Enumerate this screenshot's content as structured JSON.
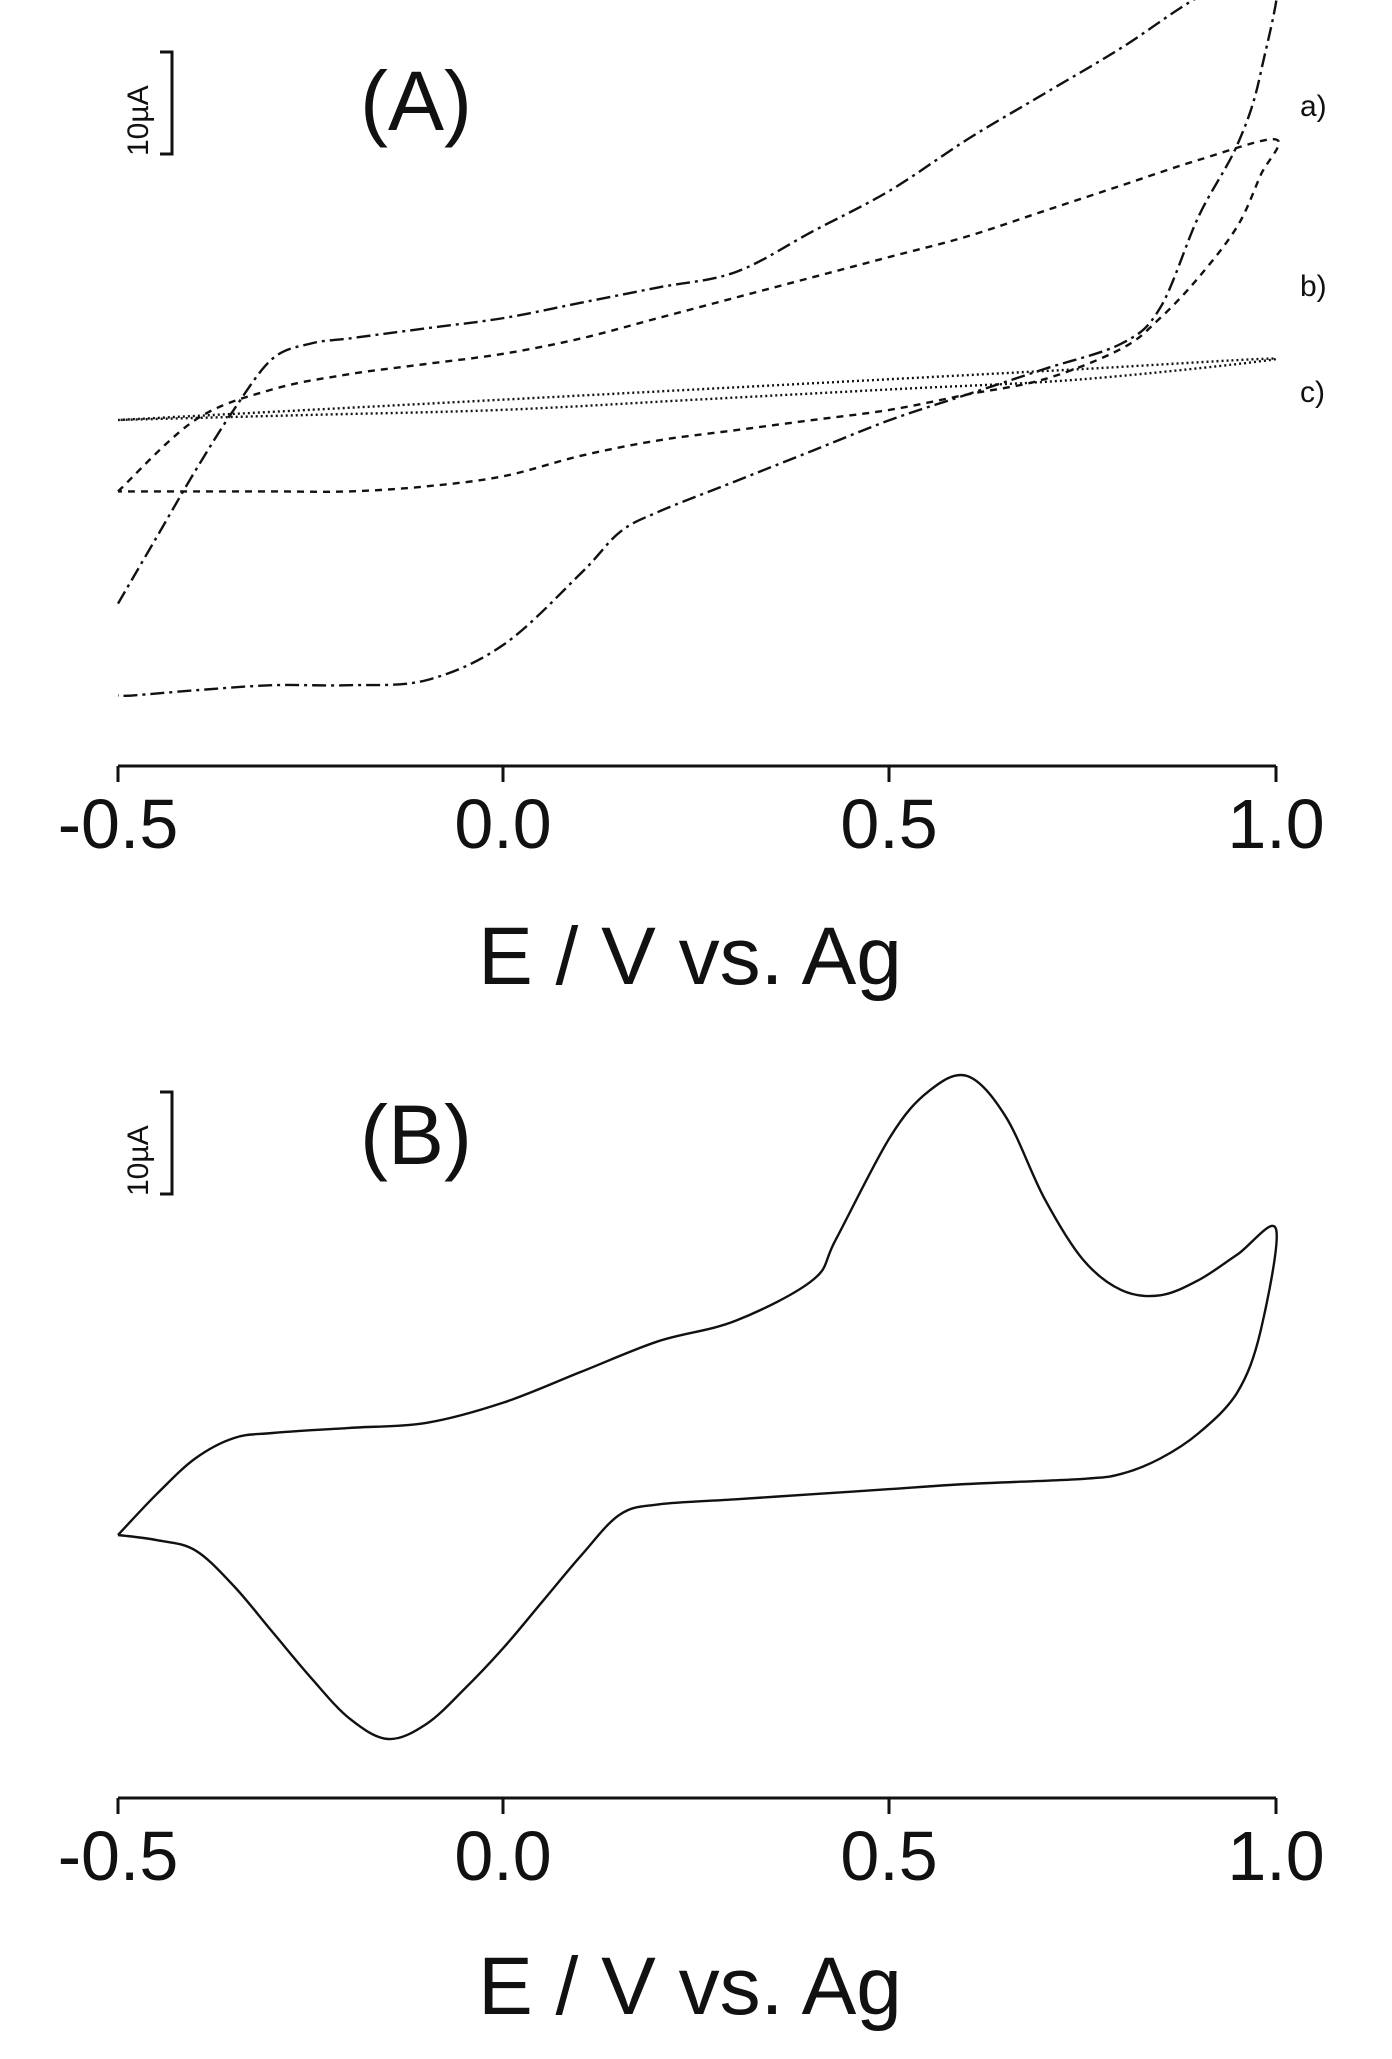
{
  "chart_data": [
    {
      "type": "line",
      "panel_label": "(A)",
      "xlabel": "E / V vs. Ag",
      "ylabel": "",
      "xlim": [
        -0.5,
        1.0
      ],
      "xticks": [
        "-0.5",
        "0.0",
        "0.5",
        "1.0"
      ],
      "y_axis": "none (current shown with 10 µA scale bar)",
      "scale_bar": {
        "label": "10µA",
        "value_uA": 10
      },
      "ylim_uA": [
        -50,
        45
      ],
      "grid": false,
      "legend": "labels at right end of each curve",
      "series": [
        {
          "name": "a)",
          "line_style": "dash-dot",
          "unit": "µA (relative)",
          "x": [
            -0.5,
            -0.45,
            -0.4,
            -0.35,
            -0.3,
            -0.25,
            -0.2,
            -0.1,
            0.0,
            0.1,
            0.2,
            0.3,
            0.4,
            0.5,
            0.6,
            0.7,
            0.8,
            0.9,
            1.0,
            0.98,
            0.95,
            0.9,
            0.85,
            0.8,
            0.7,
            0.6,
            0.5,
            0.4,
            0.3,
            0.2,
            0.15,
            0.1,
            0.0,
            -0.1,
            -0.2,
            -0.3,
            -0.4,
            -0.48,
            -0.5
          ],
          "y": [
            -18,
            -11.5,
            -5,
            1,
            6,
            7.5,
            8,
            9,
            10,
            11.5,
            13,
            14.5,
            18.5,
            22.5,
            27.5,
            32,
            36.5,
            41.5,
            45,
            34,
            27,
            20,
            11,
            7.5,
            5,
            2.5,
            0,
            -3,
            -6,
            -9,
            -11,
            -15,
            -22,
            -25.5,
            -26,
            -26,
            -26.5,
            -27,
            -27
          ]
        },
        {
          "name": "b)",
          "line_style": "dashed",
          "unit": "µA (relative)",
          "x": [
            -0.5,
            -0.4,
            -0.3,
            -0.2,
            -0.1,
            0.0,
            0.1,
            0.2,
            0.3,
            0.4,
            0.5,
            0.6,
            0.7,
            0.8,
            0.9,
            1.0,
            0.98,
            0.95,
            0.9,
            0.85,
            0.8,
            0.7,
            0.6,
            0.5,
            0.4,
            0.3,
            0.2,
            0.1,
            0.0,
            -0.1,
            -0.2,
            -0.3,
            -0.4,
            -0.5
          ],
          "y": [
            -7,
            0,
            3,
            4.5,
            5.5,
            6.5,
            8,
            10,
            12,
            14,
            16,
            18,
            20.5,
            23,
            25.5,
            27.5,
            24,
            19,
            14,
            10,
            7,
            4,
            2.5,
            1,
            0,
            -1,
            -2,
            -3.5,
            -5.5,
            -6.5,
            -7,
            -7,
            -7,
            -7
          ]
        },
        {
          "name": "c)",
          "line_style": "dotted",
          "unit": "µA (relative)",
          "x": [
            -0.5,
            -0.25,
            0.0,
            0.25,
            0.5,
            0.75,
            1.0,
            0.75,
            0.5,
            0.25,
            0.0,
            -0.25,
            -0.5
          ],
          "y": [
            0,
            1,
            2,
            3,
            4,
            5,
            6,
            4,
            3,
            2,
            1,
            0.5,
            0
          ]
        }
      ]
    },
    {
      "type": "line",
      "panel_label": "(B)",
      "xlabel": "E / V vs. Ag",
      "ylabel": "",
      "xlim": [
        -0.5,
        1.0
      ],
      "xticks": [
        "-0.5",
        "0.0",
        "0.5",
        "1.0"
      ],
      "y_axis": "none (current shown with 10 µA scale bar)",
      "scale_bar": {
        "label": "10µA",
        "value_uA": 10
      },
      "ylim_uA": [
        -35,
        50
      ],
      "grid": false,
      "series": [
        {
          "line_style": "solid",
          "unit": "µA (relative)",
          "x": [
            -0.5,
            -0.45,
            -0.4,
            -0.35,
            -0.3,
            -0.2,
            -0.1,
            0.0,
            0.1,
            0.2,
            0.3,
            0.4,
            0.43,
            0.5,
            0.55,
            0.6,
            0.65,
            0.7,
            0.75,
            0.8,
            0.85,
            0.9,
            0.95,
            1.0,
            0.98,
            0.95,
            0.9,
            0.85,
            0.8,
            0.75,
            0.6,
            0.5,
            0.4,
            0.3,
            0.2,
            0.15,
            0.1,
            0.05,
            0.0,
            -0.05,
            -0.1,
            -0.15,
            -0.2,
            -0.25,
            -0.3,
            -0.35,
            -0.4,
            -0.45,
            -0.5
          ],
          "y": [
            0,
            4,
            7.5,
            9.5,
            10,
            10.5,
            11,
            13,
            16,
            19,
            21,
            25,
            29,
            39,
            43.5,
            45,
            41,
            33,
            27,
            24,
            23.5,
            25,
            27.5,
            30,
            20,
            14,
            10,
            7.5,
            6,
            5.5,
            5,
            4.5,
            4,
            3.5,
            3,
            2,
            -2,
            -6.5,
            -11,
            -15,
            -18.5,
            -20,
            -18,
            -14,
            -9.5,
            -5,
            -1.5,
            -0.5,
            0
          ]
        }
      ]
    }
  ]
}
